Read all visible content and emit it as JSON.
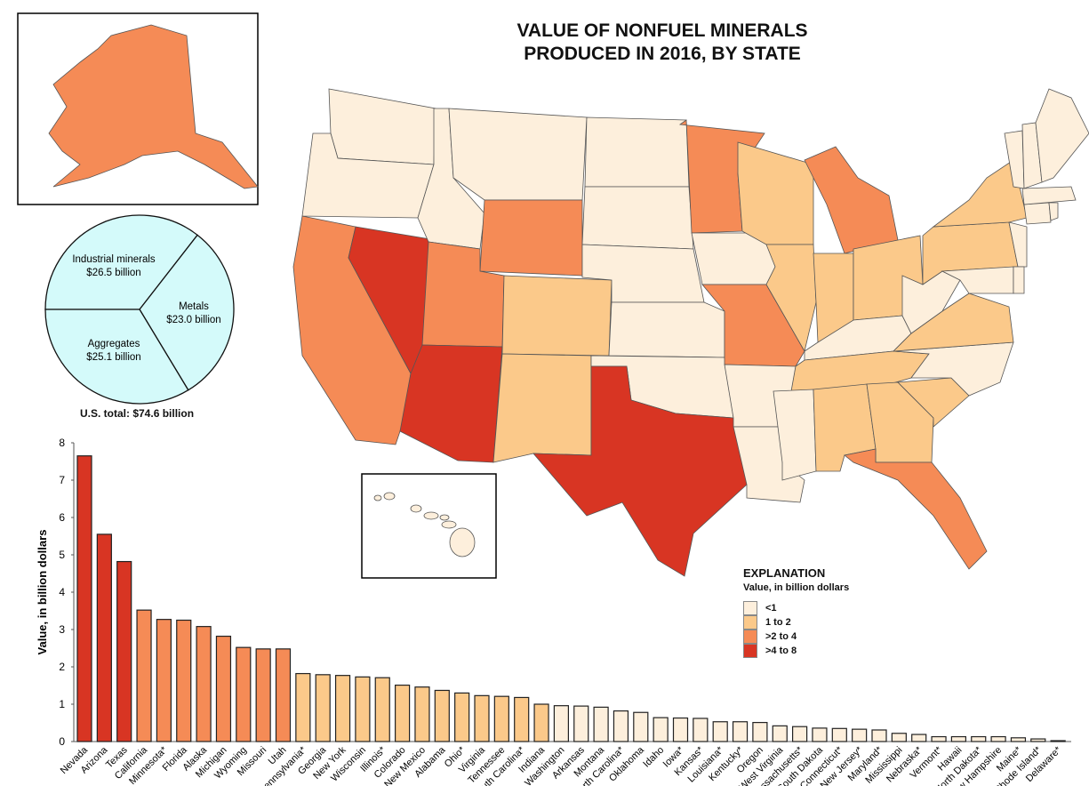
{
  "title": {
    "line1": "VALUE OF NONFUEL MINERALS",
    "line2": "PRODUCED IN 2016, BY STATE"
  },
  "legend": {
    "heading": "EXPLANATION",
    "subheading": "Value, in billion dollars",
    "classes": [
      {
        "label": "<1",
        "color": "#fdefdc",
        "max": 1
      },
      {
        "label": "1 to 2",
        "color": "#fbc98a",
        "max": 2
      },
      {
        "label": ">2 to 4",
        "color": "#f58b56",
        "max": 4
      },
      {
        "label": ">4 to 8",
        "color": "#d83523",
        "max": 8
      }
    ]
  },
  "pie": {
    "total_label": "U.S. total: $74.6 billion",
    "color": "#d4fafa",
    "slices": [
      {
        "name": "Industrial minerals",
        "label": "$26.5 billion",
        "value": 26.5
      },
      {
        "name": "Metals",
        "label": "$23.0 billion",
        "value": 23.0
      },
      {
        "name": "Aggregates",
        "label": "$25.1 billion",
        "value": 25.1
      }
    ]
  },
  "chart_data": {
    "type": "bar",
    "title": "",
    "xlabel": "",
    "ylabel": "Value, in billion dollars",
    "ylim": [
      0,
      8
    ],
    "yticks": [
      "0",
      "1",
      "2",
      "3",
      "4",
      "5",
      "6",
      "7",
      "8"
    ],
    "categories": [
      "Nevada",
      "Arizona",
      "Texas",
      "California",
      "Minnesota*",
      "Florida",
      "Alaska",
      "Michigan",
      "Wyoming",
      "Missouri",
      "Utah",
      "Pennsylvania*",
      "Georgia",
      "New York",
      "Wisconsin",
      "Illinois*",
      "Colorado",
      "New Mexico",
      "Alabama",
      "Ohio*",
      "Virginia",
      "Tennessee",
      "South Carolina*",
      "Indiana",
      "Washington",
      "Arkansas",
      "Montana",
      "North Carolina*",
      "Oklahoma",
      "Idaho",
      "Iowa*",
      "Kansas*",
      "Louisiana*",
      "Kentucky*",
      "Oregon",
      "West Virginia",
      "Massachusetts*",
      "South Dakota",
      "Connecticut*",
      "New Jersey*",
      "Maryland*",
      "Mississippi",
      "Nebraska*",
      "Vermont*",
      "Hawaii",
      "North Dakota*",
      "New Hampshire",
      "Maine*",
      "Rhode Island*",
      "Delaware*"
    ],
    "values": [
      7.65,
      5.55,
      4.82,
      3.52,
      3.27,
      3.25,
      3.08,
      2.82,
      2.52,
      2.48,
      2.48,
      1.82,
      1.79,
      1.77,
      1.73,
      1.71,
      1.51,
      1.46,
      1.37,
      1.3,
      1.23,
      1.21,
      1.18,
      1.0,
      0.96,
      0.95,
      0.92,
      0.82,
      0.78,
      0.64,
      0.63,
      0.62,
      0.53,
      0.53,
      0.51,
      0.42,
      0.4,
      0.36,
      0.35,
      0.33,
      0.31,
      0.22,
      0.19,
      0.13,
      0.13,
      0.13,
      0.13,
      0.1,
      0.07,
      0.01
    ]
  }
}
